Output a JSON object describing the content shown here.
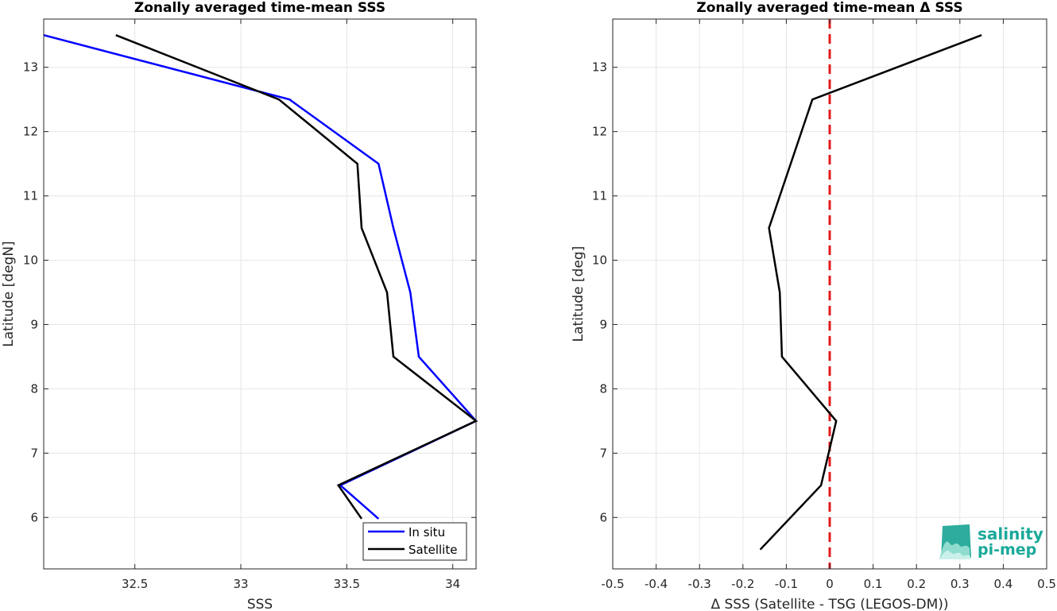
{
  "chart_data": [
    {
      "type": "line",
      "title": "Zonally averaged time-mean SSS",
      "xlabel": "SSS",
      "ylabel": "Latitude [degN]",
      "xlim": [
        32.07,
        34.11
      ],
      "ylim": [
        5.2,
        13.75
      ],
      "xticks": [
        32.5,
        33,
        33.5,
        34
      ],
      "xtick_labels": [
        "32.5",
        "33",
        "33.5",
        "34"
      ],
      "yticks": [
        6,
        7,
        8,
        9,
        10,
        11,
        12,
        13
      ],
      "ytick_labels": [
        "6",
        "7",
        "8",
        "9",
        "10",
        "11",
        "12",
        "13"
      ],
      "grid": true,
      "legend_position": "bottom-right",
      "series": [
        {
          "name": "In situ",
          "color": "#0000ff",
          "points": [
            [
              32.07,
              13.5
            ],
            [
              33.23,
              12.5
            ],
            [
              33.65,
              11.5
            ],
            [
              33.72,
              10.5
            ],
            [
              33.8,
              9.5
            ],
            [
              33.84,
              8.5
            ],
            [
              34.11,
              7.5
            ],
            [
              33.47,
              6.5
            ],
            [
              33.65,
              5.98
            ]
          ]
        },
        {
          "name": "Satellite",
          "color": "#000000",
          "points": [
            [
              32.41,
              13.5
            ],
            [
              33.18,
              12.5
            ],
            [
              33.55,
              11.5
            ],
            [
              33.57,
              10.5
            ],
            [
              33.69,
              9.5
            ],
            [
              33.72,
              8.5
            ],
            [
              34.11,
              7.5
            ],
            [
              33.46,
              6.5
            ],
            [
              33.57,
              5.98
            ]
          ]
        }
      ]
    },
    {
      "type": "line",
      "title": "Zonally averaged time-mean Δ SSS",
      "xlabel": "Δ SSS (Satellite - TSG (LEGOS-DM))",
      "ylabel": "Latitude [deg]",
      "xlim": [
        -0.5,
        0.5
      ],
      "ylim": [
        5.2,
        13.75
      ],
      "xticks": [
        -0.5,
        -0.4,
        -0.3,
        -0.2,
        -0.1,
        0,
        0.1,
        0.2,
        0.3,
        0.4,
        0.5
      ],
      "xtick_labels": [
        "-0.5",
        "-0.4",
        "-0.3",
        "-0.2",
        "-0.1",
        "0",
        "0.1",
        "0.2",
        "0.3",
        "0.4",
        "0.5"
      ],
      "yticks": [
        6,
        7,
        8,
        9,
        10,
        11,
        12,
        13
      ],
      "ytick_labels": [
        "6",
        "7",
        "8",
        "9",
        "10",
        "11",
        "12",
        "13"
      ],
      "grid": true,
      "reference_line": {
        "x": 0,
        "color": "#e31a1c",
        "style": "dashed"
      },
      "series": [
        {
          "color": "#000000",
          "points": [
            [
              0.35,
              13.5
            ],
            [
              -0.04,
              12.5
            ],
            [
              -0.09,
              11.5
            ],
            [
              -0.14,
              10.5
            ],
            [
              -0.115,
              9.5
            ],
            [
              -0.11,
              8.5
            ],
            [
              0.015,
              7.5
            ],
            [
              -0.02,
              6.5
            ],
            [
              -0.16,
              5.5
            ]
          ]
        }
      ]
    }
  ],
  "logo": {
    "line1": "salinity",
    "line2": "pi-mep",
    "color": "#1aa99a"
  }
}
